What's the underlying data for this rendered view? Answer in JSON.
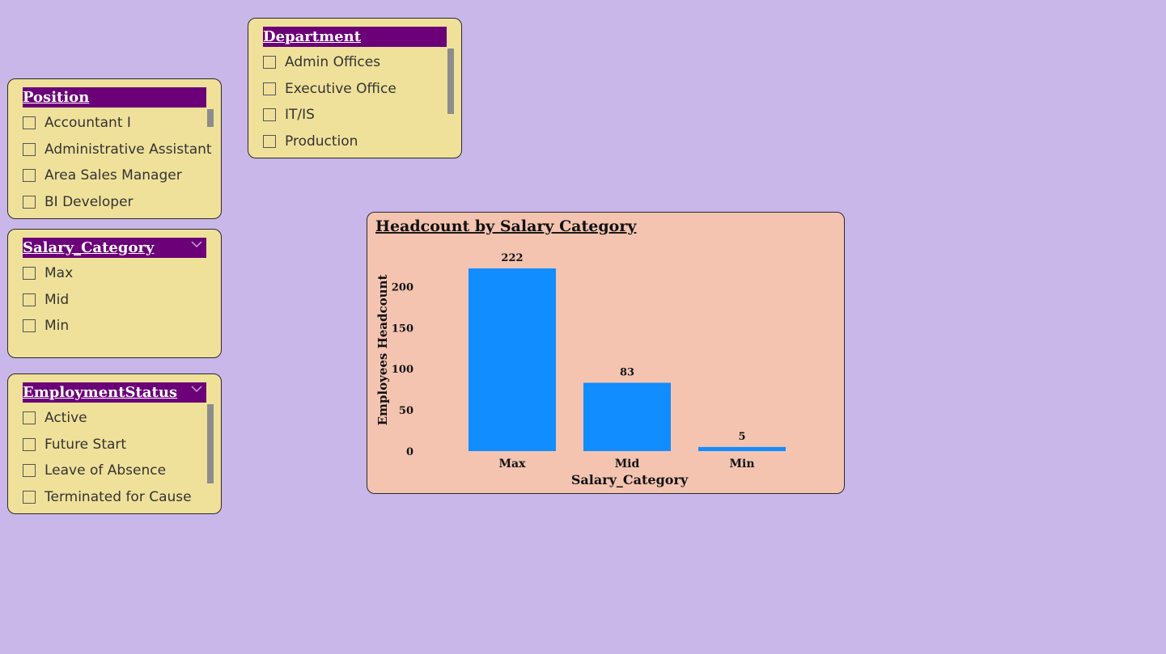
{
  "slicers": {
    "position": {
      "title": "Position",
      "items": [
        "Accountant I",
        "Administrative Assistant",
        "Area Sales Manager",
        "BI Developer"
      ]
    },
    "department": {
      "title": "Department",
      "items": [
        "Admin Offices",
        "Executive Office",
        "IT/IS",
        "Production"
      ]
    },
    "salary_category": {
      "title": "Salary_Category",
      "items": [
        "Max",
        "Mid",
        "Min"
      ],
      "icon": "chevron-down-icon"
    },
    "employment_status": {
      "title": "EmploymentStatus",
      "items": [
        "Active",
        "Future Start",
        "Leave of Absence",
        "Terminated for Cause"
      ],
      "icon": "chevron-down-icon"
    }
  },
  "colors": {
    "background": "#c8b7e8",
    "slicer_bg": "#f0e19a",
    "slicer_header": "#6b0078",
    "chart_bg": "#f4c4b0",
    "bar": "#118dff"
  },
  "chart_data": {
    "type": "bar",
    "title": "Headcount by Salary Category",
    "xlabel": "Salary_Category",
    "ylabel": "Employees Headcount",
    "categories": [
      "Max",
      "Mid",
      "Min"
    ],
    "values": [
      222,
      83,
      5
    ],
    "ylim": [
      0,
      222
    ],
    "yticks": [
      0,
      50,
      100,
      150,
      200
    ],
    "grid": false,
    "data_labels": true
  }
}
